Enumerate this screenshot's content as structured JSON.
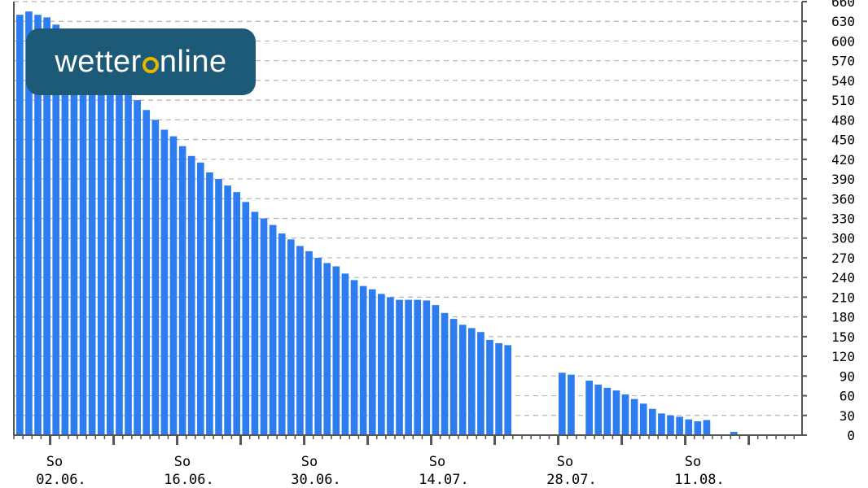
{
  "logo": {
    "part1": "wetter",
    "part2": "nline"
  },
  "chart_data": {
    "type": "bar",
    "ylim": [
      0,
      660
    ],
    "y_ticks": [
      0,
      30,
      60,
      90,
      120,
      150,
      180,
      210,
      240,
      270,
      300,
      330,
      360,
      390,
      420,
      450,
      480,
      510,
      540,
      570,
      600,
      630,
      660
    ],
    "grid": true,
    "x_label_rows": [
      {
        "weekday": "So",
        "date": "02.06."
      },
      {
        "weekday": "So",
        "date": "16.06."
      },
      {
        "weekday": "So",
        "date": "30.06."
      },
      {
        "weekday": "So",
        "date": "14.07."
      },
      {
        "weekday": "So",
        "date": "28.07."
      },
      {
        "weekday": "So",
        "date": "11.08."
      }
    ],
    "values": [
      640,
      645,
      640,
      636,
      625,
      600,
      590,
      580,
      570,
      560,
      550,
      540,
      530,
      510,
      495,
      480,
      465,
      455,
      440,
      425,
      415,
      400,
      390,
      380,
      370,
      355,
      340,
      330,
      320,
      307,
      298,
      288,
      280,
      270,
      262,
      257,
      246,
      236,
      227,
      222,
      215,
      210,
      206,
      206,
      206,
      205,
      198,
      186,
      177,
      168,
      163,
      157,
      145,
      140,
      137,
      null,
      null,
      null,
      null,
      null,
      95,
      92,
      null,
      83,
      77,
      72,
      68,
      62,
      55,
      48,
      40,
      33,
      30,
      28,
      24,
      21,
      23,
      null,
      null,
      5
    ],
    "colors": {
      "bar": "#2e7df0",
      "grid": "#b4b4b4",
      "axis": "#555555"
    }
  }
}
